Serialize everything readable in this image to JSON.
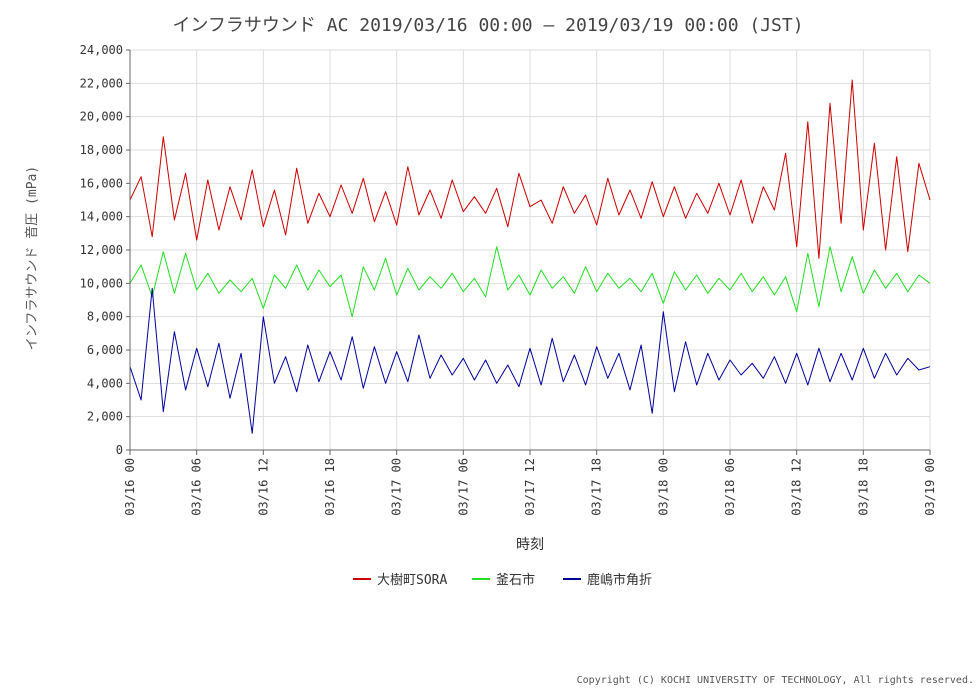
{
  "chart_data": {
    "type": "line",
    "title": "インフラサウンド AC 2019/03/16 00:00 – 2019/03/19 00:00 (JST)",
    "xlabel": "時刻",
    "ylabel": "インフラサウンド 音圧 (mPa)",
    "xlim": [
      "2019-03-16T00:00",
      "2019-03-19T00:00"
    ],
    "ylim": [
      0,
      24000
    ],
    "x_ticks": [
      "03/16 00",
      "03/16 06",
      "03/16 12",
      "03/16 18",
      "03/17 00",
      "03/17 06",
      "03/17 12",
      "03/17 18",
      "03/18 00",
      "03/18 06",
      "03/18 12",
      "03/18 18",
      "03/19 00"
    ],
    "y_ticks": [
      "0",
      "2,000",
      "4,000",
      "6,000",
      "8,000",
      "10,000",
      "12,000",
      "14,000",
      "16,000",
      "18,000",
      "20,000",
      "22,000",
      "24,000"
    ],
    "grid": true,
    "legend_position": "bottom",
    "x": [
      "2019-03-16T00:00",
      "2019-03-16T01:00",
      "2019-03-16T02:00",
      "2019-03-16T03:00",
      "2019-03-16T04:00",
      "2019-03-16T05:00",
      "2019-03-16T06:00",
      "2019-03-16T07:00",
      "2019-03-16T08:00",
      "2019-03-16T09:00",
      "2019-03-16T10:00",
      "2019-03-16T11:00",
      "2019-03-16T12:00",
      "2019-03-16T13:00",
      "2019-03-16T14:00",
      "2019-03-16T15:00",
      "2019-03-16T16:00",
      "2019-03-16T17:00",
      "2019-03-16T18:00",
      "2019-03-16T19:00",
      "2019-03-16T20:00",
      "2019-03-16T21:00",
      "2019-03-16T22:00",
      "2019-03-16T23:00",
      "2019-03-17T00:00",
      "2019-03-17T01:00",
      "2019-03-17T02:00",
      "2019-03-17T03:00",
      "2019-03-17T04:00",
      "2019-03-17T05:00",
      "2019-03-17T06:00",
      "2019-03-17T07:00",
      "2019-03-17T08:00",
      "2019-03-17T09:00",
      "2019-03-17T10:00",
      "2019-03-17T11:00",
      "2019-03-17T12:00",
      "2019-03-17T13:00",
      "2019-03-17T14:00",
      "2019-03-17T15:00",
      "2019-03-17T16:00",
      "2019-03-17T17:00",
      "2019-03-17T18:00",
      "2019-03-17T19:00",
      "2019-03-17T20:00",
      "2019-03-17T21:00",
      "2019-03-17T22:00",
      "2019-03-17T23:00",
      "2019-03-18T00:00",
      "2019-03-18T01:00",
      "2019-03-18T02:00",
      "2019-03-18T03:00",
      "2019-03-18T04:00",
      "2019-03-18T05:00",
      "2019-03-18T06:00",
      "2019-03-18T07:00",
      "2019-03-18T08:00",
      "2019-03-18T09:00",
      "2019-03-18T10:00",
      "2019-03-18T11:00",
      "2019-03-18T12:00",
      "2019-03-18T13:00",
      "2019-03-18T14:00",
      "2019-03-18T15:00",
      "2019-03-18T16:00",
      "2019-03-18T17:00",
      "2019-03-18T18:00",
      "2019-03-18T19:00",
      "2019-03-18T20:00",
      "2019-03-18T21:00",
      "2019-03-18T22:00",
      "2019-03-18T23:00",
      "2019-03-19T00:00"
    ],
    "series": [
      {
        "name": "大樹町SORA",
        "color": "#cc0000",
        "values": [
          15000,
          16400,
          12800,
          18800,
          13800,
          16600,
          12600,
          16200,
          13200,
          15800,
          13800,
          16800,
          13400,
          15600,
          12900,
          16900,
          13600,
          15400,
          14000,
          15900,
          14200,
          16300,
          13700,
          15500,
          13500,
          17000,
          14100,
          15600,
          13900,
          16200,
          14300,
          15200,
          14200,
          15700,
          13400,
          16600,
          14600,
          15000,
          13600,
          15800,
          14200,
          15300,
          13500,
          16300,
          14100,
          15600,
          13900,
          16100,
          14000,
          15800,
          13900,
          15400,
          14200,
          16000,
          14100,
          16200,
          13600,
          15800,
          14400,
          17800,
          12200,
          19700,
          11500,
          20800,
          13600,
          22200,
          13200,
          18400,
          12000,
          17600,
          11900,
          17200,
          15000
        ]
      },
      {
        "name": "釜石市",
        "color": "#22dd22",
        "values": [
          10000,
          11100,
          9200,
          11900,
          9400,
          11800,
          9600,
          10600,
          9400,
          10200,
          9500,
          10300,
          8500,
          10500,
          9700,
          11100,
          9600,
          10800,
          9800,
          10500,
          8000,
          11000,
          9600,
          11500,
          9300,
          10900,
          9600,
          10400,
          9700,
          10600,
          9500,
          10300,
          9200,
          12200,
          9600,
          10500,
          9300,
          10800,
          9700,
          10400,
          9400,
          11000,
          9500,
          10600,
          9700,
          10300,
          9500,
          10600,
          8800,
          10700,
          9600,
          10500,
          9400,
          10300,
          9600,
          10600,
          9500,
          10400,
          9300,
          10400,
          8300,
          11800,
          8600,
          12200,
          9500,
          11600,
          9400,
          10800,
          9700,
          10600,
          9500,
          10500,
          10000
        ]
      },
      {
        "name": "鹿嶋市角折",
        "color": "#000099",
        "values": [
          5000,
          3000,
          9700,
          2300,
          7100,
          3600,
          6100,
          3800,
          6400,
          3100,
          5800,
          1000,
          8000,
          4000,
          5600,
          3500,
          6300,
          4100,
          5900,
          4200,
          6800,
          3700,
          6200,
          4000,
          5900,
          4100,
          6900,
          4300,
          5700,
          4500,
          5500,
          4200,
          5400,
          4000,
          5100,
          3800,
          6100,
          3900,
          6700,
          4100,
          5700,
          3900,
          6200,
          4300,
          5800,
          3600,
          6300,
          2200,
          8300,
          3500,
          6500,
          3900,
          5800,
          4200,
          5400,
          4500,
          5200,
          4300,
          5600,
          4000,
          5800,
          3900,
          6100,
          4100,
          5800,
          4200,
          6100,
          4300,
          5800,
          4500,
          5500,
          4800,
          5000
        ]
      }
    ]
  },
  "copyright": "Copyright (C) KOCHI UNIVERSITY OF TECHNOLOGY, All rights reserved."
}
